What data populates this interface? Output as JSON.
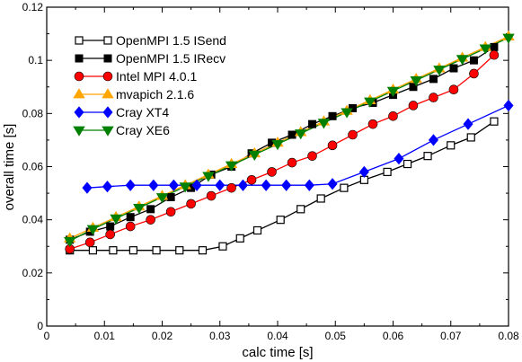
{
  "chart_data": {
    "type": "line",
    "xlabel": "calc time [s]",
    "ylabel": "overall time [s]",
    "xlim": [
      0,
      0.08
    ],
    "ylim": [
      0,
      0.12
    ],
    "xticks": [
      0,
      0.01,
      0.02,
      0.03,
      0.04,
      0.05,
      0.06,
      0.07,
      0.08
    ],
    "xtick_labels": [
      "0",
      "0.01",
      "0.02",
      "0.03",
      "0.04",
      "0.05",
      "0.06",
      "0.07",
      "0.08"
    ],
    "yticks": [
      0,
      0.02,
      0.04,
      0.06,
      0.08,
      0.1,
      0.12
    ],
    "ytick_labels": [
      "0",
      "0.02",
      "0.04",
      "0.06",
      "0.08",
      "0.1",
      "0.12"
    ],
    "grid": false,
    "legend_position": "top-left",
    "series": [
      {
        "name": "OpenMPI 1.5 ISend",
        "color": "#000000",
        "marker": "square-open",
        "x": [
          0.004,
          0.008,
          0.0115,
          0.015,
          0.019,
          0.023,
          0.027,
          0.0305,
          0.0335,
          0.0365,
          0.0405,
          0.044,
          0.0475,
          0.0515,
          0.055,
          0.059,
          0.0625,
          0.066,
          0.07,
          0.0735,
          0.0775
        ],
        "y": [
          0.0285,
          0.0285,
          0.0285,
          0.0285,
          0.0285,
          0.0285,
          0.0285,
          0.03,
          0.033,
          0.036,
          0.04,
          0.044,
          0.048,
          0.052,
          0.055,
          0.058,
          0.061,
          0.064,
          0.068,
          0.071,
          0.077
        ]
      },
      {
        "name": "OpenMPI 1.5 IRecv",
        "color": "#000000",
        "marker": "square-filled",
        "x": [
          0.004,
          0.0075,
          0.011,
          0.0145,
          0.018,
          0.0215,
          0.025,
          0.0285,
          0.032,
          0.0355,
          0.039,
          0.0425,
          0.046,
          0.0495,
          0.053,
          0.0565,
          0.06,
          0.0635,
          0.067,
          0.0705,
          0.074,
          0.0775
        ],
        "y": [
          0.0325,
          0.0355,
          0.0375,
          0.041,
          0.044,
          0.0485,
          0.052,
          0.057,
          0.06,
          0.065,
          0.069,
          0.072,
          0.076,
          0.079,
          0.082,
          0.084,
          0.087,
          0.09,
          0.093,
          0.097,
          0.1,
          0.105
        ]
      },
      {
        "name": "Intel MPI 4.0.1",
        "color": "#ff0000",
        "marker": "circle",
        "x": [
          0.004,
          0.0075,
          0.011,
          0.0145,
          0.018,
          0.0215,
          0.025,
          0.0285,
          0.032,
          0.0355,
          0.039,
          0.0425,
          0.046,
          0.0495,
          0.053,
          0.0565,
          0.06,
          0.0635,
          0.067,
          0.0705,
          0.074,
          0.0775
        ],
        "y": [
          0.029,
          0.0315,
          0.0345,
          0.0375,
          0.04,
          0.043,
          0.046,
          0.049,
          0.052,
          0.055,
          0.058,
          0.0615,
          0.064,
          0.068,
          0.072,
          0.076,
          0.079,
          0.083,
          0.086,
          0.089,
          0.095,
          0.102
        ]
      },
      {
        "name": "mvapich 2.1.6",
        "color": "#ffa500",
        "marker": "triangle-up",
        "x": [
          0.004,
          0.008,
          0.012,
          0.016,
          0.02,
          0.024,
          0.028,
          0.032,
          0.036,
          0.04,
          0.044,
          0.048,
          0.052,
          0.056,
          0.06,
          0.064,
          0.068,
          0.072,
          0.076,
          0.08
        ],
        "y": [
          0.033,
          0.037,
          0.041,
          0.045,
          0.049,
          0.053,
          0.057,
          0.061,
          0.065,
          0.069,
          0.073,
          0.077,
          0.081,
          0.085,
          0.089,
          0.093,
          0.097,
          0.101,
          0.105,
          0.109
        ]
      },
      {
        "name": "Cray XT4",
        "color": "#0000ff",
        "marker": "diamond",
        "x": [
          0.007,
          0.0105,
          0.0145,
          0.0185,
          0.022,
          0.026,
          0.03,
          0.034,
          0.038,
          0.0415,
          0.0455,
          0.0495,
          0.055,
          0.061,
          0.067,
          0.073,
          0.08
        ],
        "y": [
          0.052,
          0.0525,
          0.053,
          0.053,
          0.053,
          0.053,
          0.053,
          0.053,
          0.053,
          0.053,
          0.053,
          0.0535,
          0.058,
          0.063,
          0.07,
          0.076,
          0.083
        ]
      },
      {
        "name": "Cray XE6",
        "color": "#008000",
        "marker": "triangle-down",
        "x": [
          0.004,
          0.008,
          0.012,
          0.016,
          0.02,
          0.024,
          0.028,
          0.032,
          0.036,
          0.04,
          0.044,
          0.048,
          0.052,
          0.056,
          0.06,
          0.064,
          0.068,
          0.072,
          0.076,
          0.08
        ],
        "y": [
          0.032,
          0.0365,
          0.0405,
          0.0445,
          0.0485,
          0.0525,
          0.0565,
          0.0605,
          0.0645,
          0.0685,
          0.0725,
          0.0765,
          0.0805,
          0.0845,
          0.0885,
          0.0925,
          0.0965,
          0.1005,
          0.1045,
          0.1085
        ]
      }
    ]
  }
}
